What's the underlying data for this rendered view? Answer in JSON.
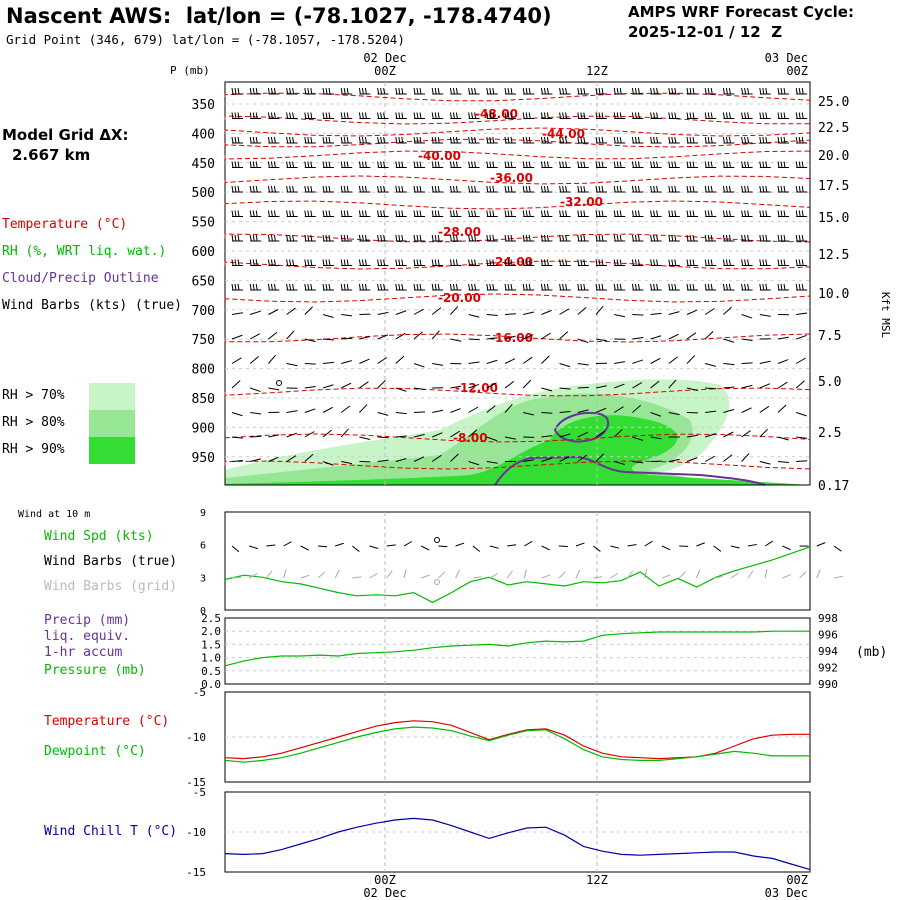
{
  "header": {
    "title": "Nascent AWS:  lat/lon = (-78.1027, -178.4740)",
    "gridpoint": "Grid Point (346, 679) lat/lon = (-78.1057, -178.5204)",
    "cycle_line1": "AMPS WRF Forecast Cycle:",
    "cycle_line2": "2025-12-01 / 12  Z"
  },
  "side": {
    "model_grid_line1": "Model Grid ΔX:",
    "model_grid_line2": "2.667 km",
    "legend_temperature": "Temperature (°C)",
    "legend_rh": "RH (%, WRT liq. wat.)",
    "legend_cloud": "Cloud/Precip Outline",
    "legend_wind": "Wind Barbs (kts) (true)",
    "rh70": "RH > 70%",
    "rh80": "RH > 80%",
    "rh90": "RH > 90%",
    "wind_at_10m": "Wind at 10 m",
    "wind_spd": "Wind Spd (kts)",
    "wind_barbs_true": "Wind Barbs (true)",
    "wind_barbs_grid": "Wind Barbs (grid)",
    "precip1": "Precip (mm)",
    "precip2": "liq. equiv.",
    "precip3": "1-hr accum",
    "pressure": "Pressure (mb)",
    "temperature": "Temperature (°C)",
    "dewpoint": "Dewpoint (°C)",
    "windchill": "Wind Chill T (°C)",
    "mb_unit": "(mb)"
  },
  "colors": {
    "temp": "#dd0000",
    "rh": "#00bb00",
    "cloud": "#663399",
    "wind": "#000000",
    "grid_barbs": "#aaaaaa",
    "windchill": "#0000aa",
    "rh70": "#c8f5c8",
    "rh80": "#96e696",
    "rh90": "#33dd33"
  },
  "chart_data": [
    {
      "type": "heatmap",
      "name": "cross-section",
      "p_axis_label": "P (mb)",
      "height_axis_label": "Kft MSL",
      "p_ticks": [
        "350",
        "400",
        "450",
        "500",
        "550",
        "600",
        "650",
        "700",
        "750",
        "800",
        "850",
        "900",
        "950"
      ],
      "height_ticks": [
        "25.0",
        "22.5",
        "20.0",
        "17.5",
        "15.0",
        "12.5",
        "10.0",
        "7.5",
        "5.0",
        "2.5",
        "0.17"
      ],
      "time_top": [
        {
          "line1": "02 Dec",
          "line2": "00Z"
        },
        {
          "line1": "",
          "line2": "12Z"
        },
        {
          "line1": "03 Dec",
          "line2": "00Z"
        }
      ],
      "temp_contour_labels": [
        "-48.00",
        "-44.00",
        "-40.00",
        "-36.00",
        "-32.00",
        "-28.00",
        "-24.00",
        "-20.00",
        "-16.00",
        "-12.00",
        "-8.00"
      ]
    },
    {
      "type": "line",
      "name": "wind-speed",
      "ylim": [
        0,
        9
      ],
      "yticks": [
        "0",
        "3",
        "6",
        "9"
      ],
      "series": [
        {
          "name": "Wind Spd (kts)",
          "values": [
            2.8,
            3.2,
            3.0,
            2.6,
            2.4,
            2.0,
            1.6,
            1.3,
            1.4,
            1.3,
            1.6,
            0.7,
            1.6,
            2.6,
            3.0,
            2.3,
            2.6,
            2.4,
            2.2,
            2.6,
            2.5,
            2.7,
            3.5,
            2.2,
            2.9,
            2.1,
            3.0,
            3.6,
            4.1,
            4.6,
            5.2,
            5.8
          ]
        }
      ]
    },
    {
      "type": "line",
      "name": "pressure-precip",
      "ylim_left": [
        0.0,
        2.5
      ],
      "yticks_left": [
        "0.0",
        "0.5",
        "1.0",
        "1.5",
        "2.0",
        "2.5"
      ],
      "ylim_right": [
        990,
        998
      ],
      "yticks_right": [
        "990",
        "992",
        "994",
        "996",
        "998"
      ],
      "series": [
        {
          "name": "Pressure (mb)",
          "values": [
            992.2,
            992.8,
            993.2,
            993.4,
            993.4,
            993.5,
            993.4,
            993.7,
            993.8,
            993.9,
            994.1,
            994.4,
            994.6,
            994.7,
            994.8,
            994.6,
            995.0,
            995.2,
            995.1,
            995.2,
            995.9,
            996.1,
            996.2,
            996.3,
            996.3,
            996.3,
            996.3,
            996.3,
            996.3,
            996.4,
            996.4,
            996.4
          ]
        }
      ]
    },
    {
      "type": "line",
      "name": "temperature-dewpoint",
      "ylim": [
        -15,
        -5
      ],
      "yticks": [
        "-5",
        "-10",
        "-15"
      ],
      "series": [
        {
          "name": "Temperature (°C)",
          "values": [
            -12.3,
            -12.4,
            -12.2,
            -11.8,
            -11.2,
            -10.6,
            -10.0,
            -9.4,
            -8.8,
            -8.4,
            -8.2,
            -8.3,
            -8.7,
            -9.5,
            -10.3,
            -9.7,
            -9.2,
            -9.1,
            -9.8,
            -11.0,
            -11.8,
            -12.2,
            -12.3,
            -12.4,
            -12.3,
            -12.2,
            -11.8,
            -11.0,
            -10.2,
            -9.8,
            -9.7,
            -9.7
          ]
        },
        {
          "name": "Dewpoint (°C)",
          "values": [
            -12.6,
            -12.8,
            -12.6,
            -12.3,
            -11.8,
            -11.2,
            -10.6,
            -10.0,
            -9.5,
            -9.1,
            -8.9,
            -9.0,
            -9.3,
            -9.9,
            -10.4,
            -9.8,
            -9.3,
            -9.2,
            -10.2,
            -11.4,
            -12.2,
            -12.5,
            -12.6,
            -12.6,
            -12.4,
            -12.2,
            -11.9,
            -11.6,
            -11.8,
            -12.1,
            -12.1,
            -12.1
          ]
        }
      ]
    },
    {
      "type": "line",
      "name": "wind-chill",
      "ylim": [
        -15,
        -5
      ],
      "yticks": [
        "-5",
        "-10",
        "-15"
      ],
      "series": [
        {
          "name": "Wind Chill T (°C)",
          "values": [
            -12.7,
            -12.8,
            -12.7,
            -12.2,
            -11.5,
            -10.8,
            -10.0,
            -9.4,
            -8.9,
            -8.5,
            -8.3,
            -8.5,
            -9.2,
            -10.0,
            -10.8,
            -10.1,
            -9.5,
            -9.4,
            -10.4,
            -11.8,
            -12.4,
            -12.8,
            -12.9,
            -12.8,
            -12.7,
            -12.6,
            -12.5,
            -12.5,
            -13.0,
            -13.3,
            -14.0,
            -14.7
          ]
        }
      ]
    }
  ],
  "time_bottom": [
    {
      "line1": "00Z",
      "line2": "02 Dec"
    },
    {
      "line1": "12Z",
      "line2": ""
    },
    {
      "line1": "00Z",
      "line2": "03 Dec"
    }
  ]
}
